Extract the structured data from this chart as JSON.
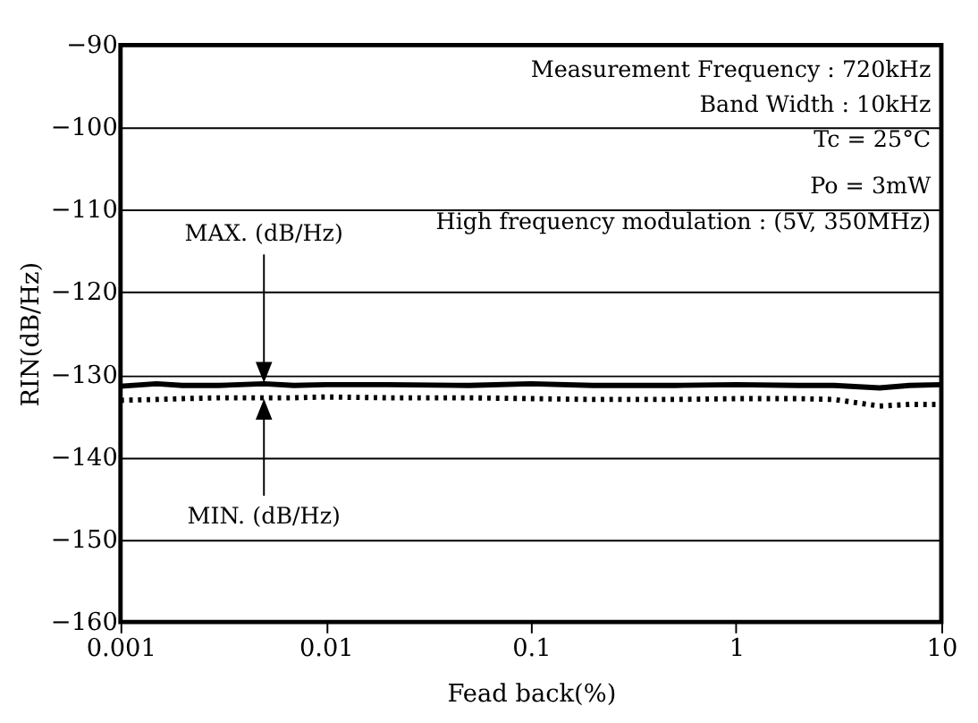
{
  "chart_data": {
    "type": "line",
    "xlabel": "Fead back(%)",
    "ylabel": "RIN(dB/Hz)",
    "log": "x",
    "xlim": [
      0.001,
      10
    ],
    "xticks": [
      0.001,
      0.01,
      0.1,
      1,
      10
    ],
    "ylim": [
      -160,
      -90
    ],
    "yticks": [
      -160,
      -150,
      -140,
      -130,
      -120,
      -110,
      -100,
      -90
    ],
    "grid": "y",
    "series": [
      {
        "color": "#000000",
        "line_style": "solid",
        "x": [
          0.001,
          0.0015,
          0.002,
          0.003,
          0.005,
          0.007,
          0.01,
          0.02,
          0.05,
          0.1,
          0.2,
          0.5,
          1,
          2,
          3,
          5,
          7,
          10
        ],
        "values": [
          -131.4,
          -131.1,
          -131.3,
          -131.3,
          -131.1,
          -131.3,
          -131.2,
          -131.2,
          -131.3,
          -131.1,
          -131.3,
          -131.3,
          -131.2,
          -131.3,
          -131.3,
          -131.6,
          -131.3,
          -131.2
        ]
      },
      {
        "color": "#000000",
        "line_style": "dotted",
        "x": [
          0.001,
          0.0015,
          0.002,
          0.003,
          0.005,
          0.007,
          0.01,
          0.02,
          0.05,
          0.1,
          0.2,
          0.5,
          1,
          2,
          3,
          5,
          7,
          10
        ],
        "values": [
          -133.1,
          -133.0,
          -132.9,
          -132.8,
          -132.8,
          -132.8,
          -132.7,
          -132.8,
          -132.8,
          -132.9,
          -133.0,
          -133.0,
          -132.9,
          -132.9,
          -133.0,
          -133.8,
          -133.6,
          -133.6
        ]
      }
    ],
    "annotations": [
      "Measurement Frequency : 720kHz",
      "Band Width : 10kHz",
      "Tc = 25°C",
      "Po = 3mW",
      "High frequency modulation : (5V, 350MHz)",
      {
        "text": "MAX. (dB/Hz)",
        "x": 0.005,
        "y": -131.1
      },
      {
        "text": "MIN. (dB/Hz)",
        "x": 0.005,
        "y": -132.8
      }
    ]
  }
}
